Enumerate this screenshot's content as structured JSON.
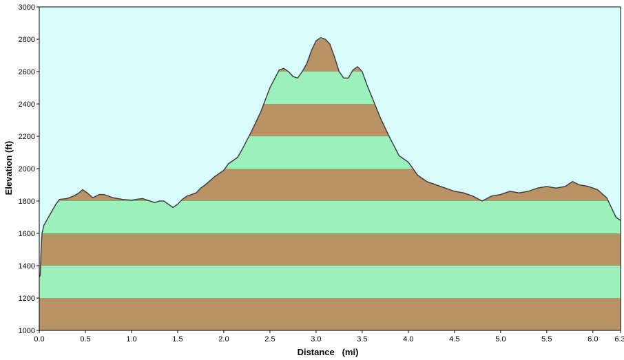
{
  "chart_data": {
    "type": "area",
    "title": "",
    "xlabel": "Distance   (mi)",
    "ylabel": "Elevation (ft)",
    "xlim": [
      0,
      6.3
    ],
    "ylim": [
      1000,
      3000
    ],
    "x_ticks": [
      0,
      0.5,
      1,
      1.5,
      2,
      2.5,
      3,
      3.5,
      4,
      4.5,
      5,
      5.5,
      6,
      6.3
    ],
    "x_tick_labels": [
      "0.0",
      "0.5",
      "1.0",
      "1.5",
      "2.0",
      "2.5",
      "3.0",
      "3.5",
      "4.0",
      "4.5",
      "5.0",
      "5.5",
      "6.0",
      "6.3"
    ],
    "y_ticks": [
      1000,
      1200,
      1400,
      1600,
      1800,
      2000,
      2200,
      2400,
      2600,
      2800,
      3000
    ],
    "y_tick_labels": [
      "1000",
      "1200",
      "1400",
      "1600",
      "1800",
      "2000",
      "2200",
      "2400",
      "2600",
      "2800",
      "3000"
    ],
    "band_height": 200,
    "grid": false,
    "legend": "none",
    "colors": {
      "sky": "#d8fcfc",
      "band_brown": "#b99266",
      "band_green": "#9bf0bc",
      "profile_line": "#404040"
    },
    "x": [
      0,
      0.01,
      0.02,
      0.03,
      0.05,
      0.08,
      0.12,
      0.18,
      0.22,
      0.3,
      0.37,
      0.43,
      0.47,
      0.52,
      0.58,
      0.65,
      0.7,
      0.75,
      0.8,
      0.9,
      1.0,
      1.05,
      1.12,
      1.2,
      1.25,
      1.3,
      1.35,
      1.4,
      1.45,
      1.5,
      1.55,
      1.6,
      1.7,
      1.75,
      1.8,
      1.9,
      2.0,
      2.05,
      2.15,
      2.2,
      2.3,
      2.4,
      2.5,
      2.6,
      2.65,
      2.7,
      2.75,
      2.8,
      2.85,
      2.9,
      2.95,
      3.0,
      3.05,
      3.1,
      3.15,
      3.2,
      3.25,
      3.3,
      3.35,
      3.4,
      3.45,
      3.5,
      3.55,
      3.6,
      3.7,
      3.8,
      3.9,
      4.0,
      4.1,
      4.2,
      4.3,
      4.4,
      4.5,
      4.6,
      4.7,
      4.8,
      4.9,
      5.0,
      5.1,
      5.2,
      5.3,
      5.4,
      5.5,
      5.6,
      5.7,
      5.78,
      5.85,
      5.95,
      6.05,
      6.15,
      6.25,
      6.3
    ],
    "y": [
      1330,
      1340,
      1500,
      1600,
      1650,
      1680,
      1720,
      1780,
      1810,
      1815,
      1830,
      1850,
      1870,
      1850,
      1820,
      1840,
      1840,
      1830,
      1820,
      1810,
      1805,
      1810,
      1815,
      1800,
      1790,
      1800,
      1800,
      1780,
      1760,
      1780,
      1810,
      1830,
      1850,
      1880,
      1900,
      1950,
      1990,
      2030,
      2070,
      2120,
      2230,
      2350,
      2500,
      2610,
      2620,
      2600,
      2570,
      2560,
      2600,
      2650,
      2730,
      2790,
      2810,
      2800,
      2770,
      2690,
      2600,
      2560,
      2560,
      2610,
      2630,
      2600,
      2520,
      2450,
      2310,
      2190,
      2080,
      2040,
      1960,
      1920,
      1900,
      1880,
      1860,
      1850,
      1830,
      1800,
      1830,
      1840,
      1860,
      1850,
      1860,
      1880,
      1890,
      1880,
      1890,
      1920,
      1900,
      1890,
      1870,
      1820,
      1700,
      1680
    ]
  }
}
